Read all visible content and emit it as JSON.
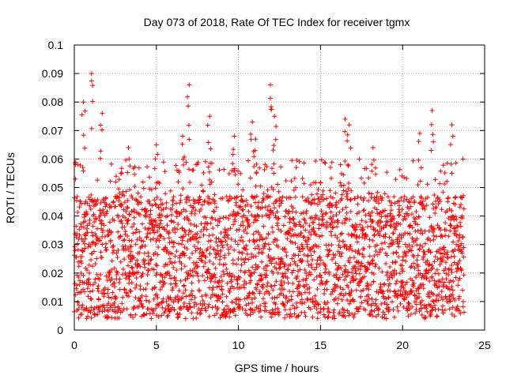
{
  "chart_data": {
    "type": "scatter",
    "title": "Day 073 of 2018, Rate Of TEC Index for receiver tgmx",
    "xlabel": "GPS time / hours",
    "ylabel": "ROTI / TECUs",
    "xlim": [
      0,
      25
    ],
    "ylim": [
      0,
      0.1
    ],
    "x_ticks": [
      "0",
      "5",
      "10",
      "15",
      "20",
      "25"
    ],
    "y_ticks": [
      "0",
      "0.01",
      "0.02",
      "0.03",
      "0.04",
      "0.05",
      "0.06",
      "0.07",
      "0.08",
      "0.09",
      "0.1"
    ],
    "grid": true,
    "marker": "+",
    "marker_color": "#ff0000",
    "series": [
      {
        "x_range": [
          0.0,
          23.75
        ],
        "sample_interval_hours": 0.0083,
        "typical_range": [
          0.004,
          0.05
        ],
        "peaks": [
          {
            "x": 0.55,
            "y": 0.08
          },
          {
            "x": 1.05,
            "y": 0.09
          },
          {
            "x": 1.7,
            "y": 0.076
          },
          {
            "x": 3.3,
            "y": 0.064
          },
          {
            "x": 5.0,
            "y": 0.065
          },
          {
            "x": 6.6,
            "y": 0.068
          },
          {
            "x": 7.0,
            "y": 0.086
          },
          {
            "x": 8.25,
            "y": 0.075
          },
          {
            "x": 9.75,
            "y": 0.068
          },
          {
            "x": 10.85,
            "y": 0.073
          },
          {
            "x": 11.05,
            "y": 0.067
          },
          {
            "x": 11.95,
            "y": 0.086
          },
          {
            "x": 12.2,
            "y": 0.075
          },
          {
            "x": 16.5,
            "y": 0.074
          },
          {
            "x": 16.75,
            "y": 0.072
          },
          {
            "x": 18.2,
            "y": 0.064
          },
          {
            "x": 21.05,
            "y": 0.069
          },
          {
            "x": 21.8,
            "y": 0.077
          },
          {
            "x": 23.0,
            "y": 0.072
          }
        ]
      }
    ]
  }
}
